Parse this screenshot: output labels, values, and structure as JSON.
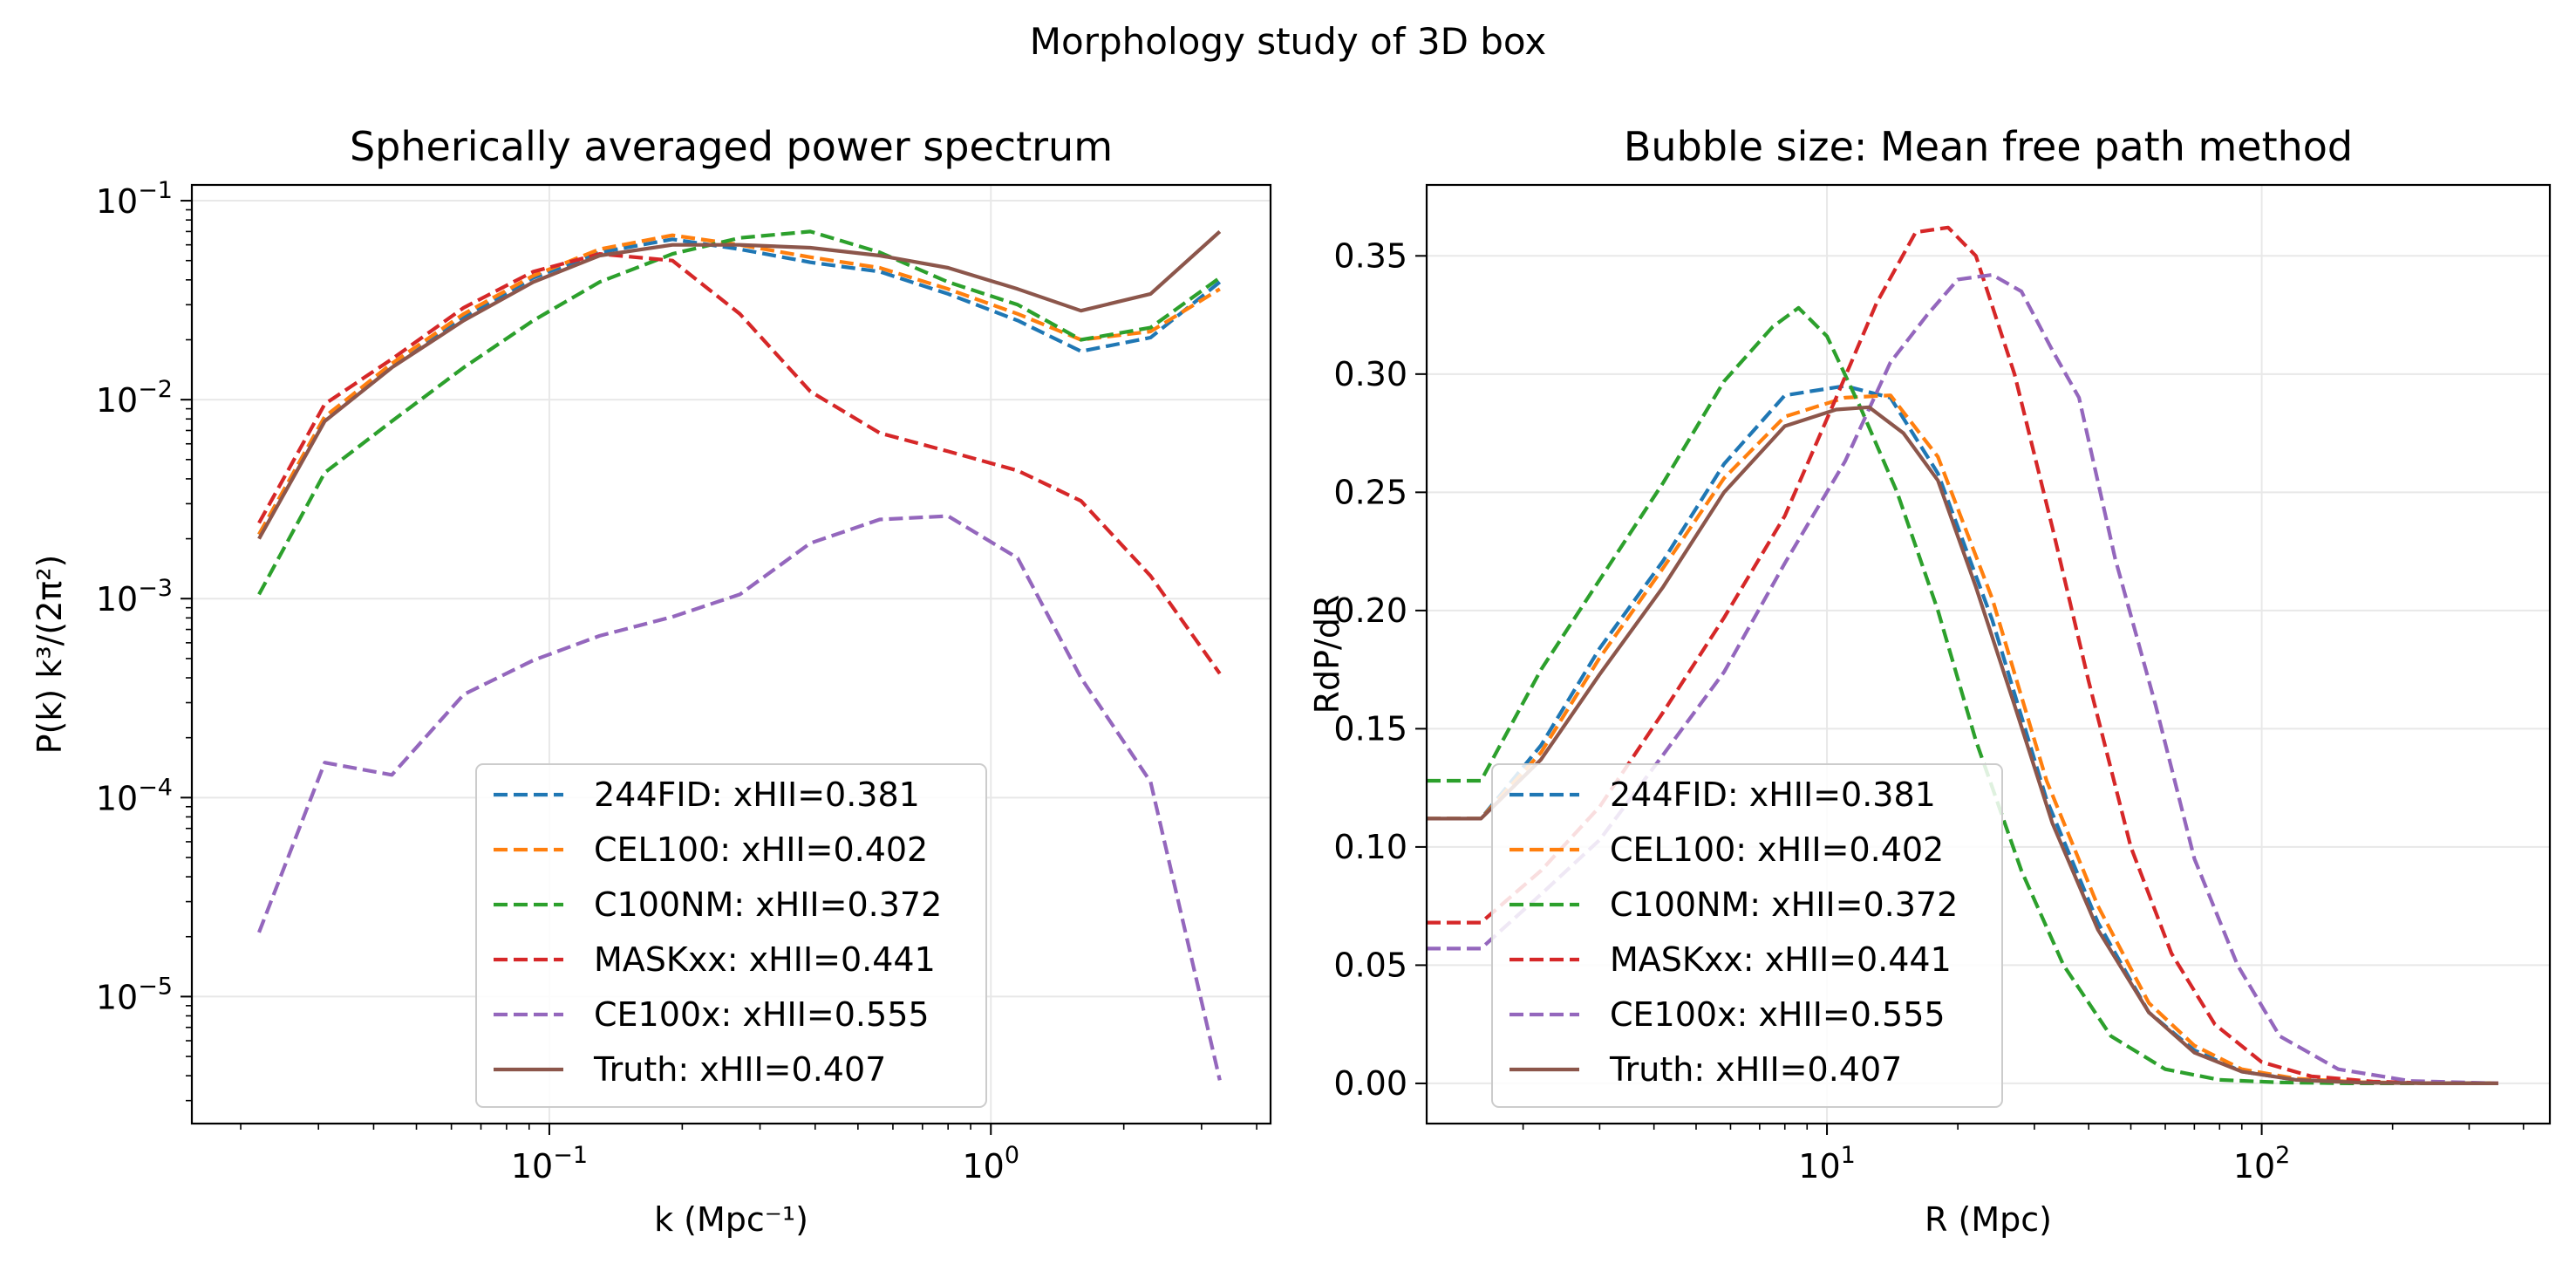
{
  "figure": {
    "title": "Morphology study of 3D box"
  },
  "chart_data": [
    {
      "type": "line",
      "title": "Spherically averaged power spectrum",
      "xlabel": "k (Mpc⁻¹)",
      "ylabel": "P(k) k³/(2π²)",
      "xscale": "log",
      "yscale": "log",
      "xlim": [
        0.0155,
        4.3
      ],
      "ylim": [
        2.3e-06,
        0.12
      ],
      "xticks": [
        {
          "value": 0.1,
          "base": "10",
          "exp": "−1"
        },
        {
          "value": 1,
          "base": "10",
          "exp": "0"
        }
      ],
      "yticks": [
        {
          "value": 1e-05,
          "base": "10",
          "exp": "−5"
        },
        {
          "value": 0.0001,
          "base": "10",
          "exp": "−4"
        },
        {
          "value": 0.001,
          "base": "10",
          "exp": "−3"
        },
        {
          "value": 0.01,
          "base": "10",
          "exp": "−2"
        },
        {
          "value": 0.1,
          "base": "10",
          "exp": "−1"
        }
      ],
      "grid": true,
      "legend_position": "lower-center",
      "x": [
        0.022,
        0.031,
        0.044,
        0.064,
        0.092,
        0.13,
        0.19,
        0.27,
        0.39,
        0.56,
        0.8,
        1.15,
        1.6,
        2.3,
        3.3
      ],
      "series": [
        {
          "name": "244FID: xHII=0.381",
          "color": "#1f77b4",
          "dash": true,
          "values": [
            0.0021,
            0.0082,
            0.015,
            0.026,
            0.041,
            0.055,
            0.064,
            0.057,
            0.049,
            0.044,
            0.034,
            0.025,
            0.0175,
            0.0205,
            0.039
          ]
        },
        {
          "name": "CEL100: xHII=0.402",
          "color": "#ff7f0e",
          "dash": true,
          "values": [
            0.0021,
            0.0082,
            0.0152,
            0.027,
            0.042,
            0.057,
            0.067,
            0.06,
            0.052,
            0.046,
            0.036,
            0.027,
            0.02,
            0.022,
            0.036
          ]
        },
        {
          "name": "C100NM: xHII=0.372",
          "color": "#2ca02c",
          "dash": true,
          "values": [
            0.00105,
            0.0043,
            0.0078,
            0.0145,
            0.025,
            0.039,
            0.054,
            0.065,
            0.07,
            0.055,
            0.039,
            0.03,
            0.02,
            0.023,
            0.041
          ]
        },
        {
          "name": "MASKxx: xHII=0.441",
          "color": "#d62728",
          "dash": true,
          "values": [
            0.0024,
            0.0095,
            0.016,
            0.029,
            0.044,
            0.054,
            0.05,
            0.027,
            0.011,
            0.0068,
            0.0055,
            0.0044,
            0.0031,
            0.0013,
            0.00042
          ]
        },
        {
          "name": "CE100x: xHII=0.555",
          "color": "#9467bd",
          "dash": true,
          "values": [
            2.1e-05,
            0.00015,
            0.00013,
            0.00033,
            0.00049,
            0.00065,
            0.00081,
            0.00105,
            0.0019,
            0.0025,
            0.0026,
            0.0016,
            0.0004,
            0.00012,
            3.8e-06
          ]
        },
        {
          "name": "Truth: xHII=0.407",
          "color": "#8c564b",
          "dash": false,
          "values": [
            0.002,
            0.0078,
            0.0145,
            0.025,
            0.039,
            0.053,
            0.06,
            0.06,
            0.058,
            0.053,
            0.046,
            0.036,
            0.028,
            0.034,
            0.07
          ]
        }
      ]
    },
    {
      "type": "line",
      "title": "Bubble size: Mean free path method",
      "xlabel": "R (Mpc)",
      "ylabel": "RdP/dR",
      "xscale": "log",
      "yscale": "linear",
      "xlim": [
        1.2,
        460
      ],
      "ylim": [
        -0.017,
        0.38
      ],
      "xticks": [
        {
          "value": 10,
          "base": "10",
          "exp": "1"
        },
        {
          "value": 100,
          "base": "10",
          "exp": "2"
        }
      ],
      "yticks": [
        {
          "value": 0,
          "label": "0.00"
        },
        {
          "value": 0.05,
          "label": "0.05"
        },
        {
          "value": 0.1,
          "label": "0.10"
        },
        {
          "value": 0.15,
          "label": "0.15"
        },
        {
          "value": 0.2,
          "label": "0.20"
        },
        {
          "value": 0.25,
          "label": "0.25"
        },
        {
          "value": 0.3,
          "label": "0.30"
        },
        {
          "value": 0.35,
          "label": "0.35"
        }
      ],
      "grid": true,
      "legend_position": "lower-left",
      "series": [
        {
          "name": "244FID: xHII=0.381",
          "color": "#1f77b4",
          "dash": true,
          "x": [
            1.2,
            1.6,
            2.2,
            3.0,
            4.2,
            5.8,
            8.0,
            11.0,
            14.0,
            18.0,
            24.0,
            32.0,
            42.0,
            55.0,
            70.0,
            90.0,
            120.0,
            170.0,
            250.0,
            350.0
          ],
          "y": [
            0.112,
            0.112,
            0.143,
            0.184,
            0.221,
            0.262,
            0.291,
            0.295,
            0.29,
            0.258,
            0.196,
            0.12,
            0.068,
            0.03,
            0.014,
            0.005,
            0.0015,
            0.0005,
            0.0,
            0.0
          ]
        },
        {
          "name": "CEL100: xHII=0.402",
          "color": "#ff7f0e",
          "dash": true,
          "x": [
            1.2,
            1.6,
            2.2,
            3.0,
            4.2,
            5.8,
            8.0,
            11.0,
            14.0,
            18.0,
            24.0,
            32.0,
            42.0,
            55.0,
            70.0,
            90.0,
            120.0,
            170.0,
            250.0,
            350.0
          ],
          "y": [
            0.112,
            0.112,
            0.14,
            0.18,
            0.218,
            0.256,
            0.282,
            0.29,
            0.291,
            0.265,
            0.205,
            0.128,
            0.075,
            0.034,
            0.016,
            0.006,
            0.002,
            0.0005,
            0.0,
            0.0
          ]
        },
        {
          "name": "C100NM: xHII=0.372",
          "color": "#2ca02c",
          "dash": true,
          "x": [
            1.2,
            1.6,
            2.2,
            3.0,
            4.2,
            5.8,
            7.5,
            8.6,
            10.0,
            12.0,
            14.5,
            18.0,
            22.0,
            28.0,
            35.0,
            45.0,
            60.0,
            80.0,
            110.0,
            160.0,
            250.0,
            350.0
          ],
          "y": [
            0.128,
            0.128,
            0.175,
            0.213,
            0.254,
            0.297,
            0.32,
            0.328,
            0.316,
            0.285,
            0.25,
            0.2,
            0.145,
            0.09,
            0.05,
            0.02,
            0.006,
            0.0015,
            0.0004,
            0.0,
            0.0,
            0.0
          ]
        },
        {
          "name": "MASKxx: xHII=0.441",
          "color": "#d62728",
          "dash": true,
          "x": [
            1.2,
            1.6,
            2.2,
            3.0,
            4.2,
            5.8,
            8.0,
            10.5,
            13.0,
            16.0,
            19.0,
            22.0,
            27.0,
            33.0,
            40.0,
            50.0,
            62.0,
            78.0,
            100.0,
            130.0,
            180.0,
            250.0,
            350.0
          ],
          "y": [
            0.068,
            0.068,
            0.09,
            0.117,
            0.157,
            0.197,
            0.24,
            0.29,
            0.33,
            0.36,
            0.362,
            0.35,
            0.3,
            0.235,
            0.17,
            0.1,
            0.055,
            0.025,
            0.009,
            0.003,
            0.0008,
            0.0,
            0.0
          ]
        },
        {
          "name": "CE100x: xHII=0.555",
          "color": "#9467bd",
          "dash": true,
          "x": [
            1.2,
            1.6,
            2.2,
            3.0,
            4.2,
            5.8,
            8.0,
            11.0,
            14.0,
            17.0,
            20.0,
            24.0,
            28.0,
            33.0,
            38.0,
            46.0,
            57.0,
            70.0,
            88.0,
            110.0,
            150.0,
            220.0,
            350.0
          ],
          "y": [
            0.057,
            0.057,
            0.08,
            0.103,
            0.139,
            0.174,
            0.22,
            0.263,
            0.305,
            0.325,
            0.34,
            0.342,
            0.335,
            0.31,
            0.29,
            0.222,
            0.16,
            0.095,
            0.05,
            0.02,
            0.006,
            0.001,
            0.0
          ]
        },
        {
          "name": "Truth: xHII=0.407",
          "color": "#8c564b",
          "dash": false,
          "x": [
            1.2,
            1.6,
            2.2,
            3.0,
            4.2,
            5.8,
            8.0,
            10.5,
            12.5,
            15.0,
            18.0,
            22.0,
            27.0,
            33.0,
            42.0,
            55.0,
            70.0,
            90.0,
            120.0,
            170.0,
            250.0,
            350.0
          ],
          "y": [
            0.112,
            0.112,
            0.137,
            0.173,
            0.21,
            0.25,
            0.278,
            0.285,
            0.286,
            0.275,
            0.255,
            0.21,
            0.16,
            0.11,
            0.065,
            0.03,
            0.013,
            0.005,
            0.0015,
            0.0003,
            0.0,
            0.0
          ]
        }
      ]
    }
  ]
}
